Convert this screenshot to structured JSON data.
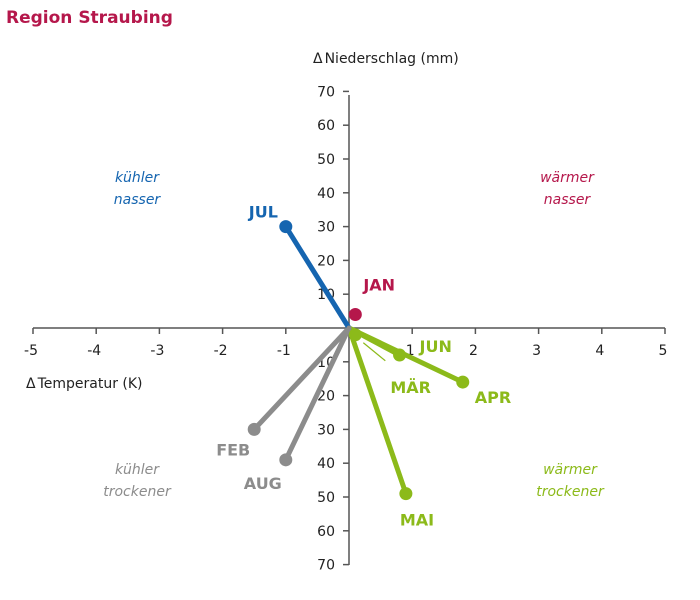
{
  "title": "Region Straubing",
  "colors": {
    "title": "#b5174b",
    "axis": "#555555",
    "blue": "#1565b0",
    "crimson": "#b5174b",
    "gray": "#8c8c8c",
    "green": "#8cba1a"
  },
  "quadrants": {
    "top_left": {
      "line1": "kühler",
      "line2": "nasser",
      "color": "#1565b0"
    },
    "top_right": {
      "line1": "wärmer",
      "line2": "nasser",
      "color": "#b5174b"
    },
    "bottom_left": {
      "line1": "kühler",
      "line2": "trockener",
      "color": "#8c8c8c"
    },
    "bottom_right": {
      "line1": "wärmer",
      "line2": "trockener",
      "color": "#8cba1a"
    }
  },
  "chart_data": {
    "type": "scatter",
    "title": "Region Straubing",
    "xlabel": "Temperatur (K)",
    "ylabel": "Niederschlag (mm)",
    "xlabel_prefix": "Δ",
    "ylabel_prefix": "Δ",
    "xlim": [
      -5,
      5
    ],
    "ylim": [
      -70,
      70
    ],
    "xticks": [
      "-5",
      "-4",
      "-3",
      "-2",
      "-1",
      "1",
      "2",
      "3",
      "4",
      "5"
    ],
    "yticks_pos": [
      "70",
      "60",
      "50",
      "40",
      "30",
      "20",
      "10"
    ],
    "yticks_neg": [
      "10",
      "20",
      "30",
      "40",
      "50",
      "60",
      "70"
    ],
    "grid": false,
    "vectors_from_origin": true,
    "points": [
      {
        "label": "JAN",
        "x": 0.1,
        "y": 4,
        "color": "#b5174b",
        "line": false
      },
      {
        "label": "FEB",
        "x": -1.5,
        "y": -30,
        "color": "#8c8c8c",
        "line": true
      },
      {
        "label": "MÄR",
        "x": 0.1,
        "y": -2,
        "color": "#8cba1a",
        "line": true
      },
      {
        "label": "APR",
        "x": 1.8,
        "y": -16,
        "color": "#8cba1a",
        "line": true
      },
      {
        "label": "MAI",
        "x": 0.9,
        "y": -49,
        "color": "#8cba1a",
        "line": true
      },
      {
        "label": "JUN",
        "x": 0.8,
        "y": -8,
        "color": "#8cba1a",
        "line": true
      },
      {
        "label": "JUL",
        "x": -1.0,
        "y": 30,
        "color": "#1565b0",
        "line": true
      },
      {
        "label": "AUG",
        "x": -1.0,
        "y": -39,
        "color": "#8c8c8c",
        "line": true
      }
    ]
  }
}
